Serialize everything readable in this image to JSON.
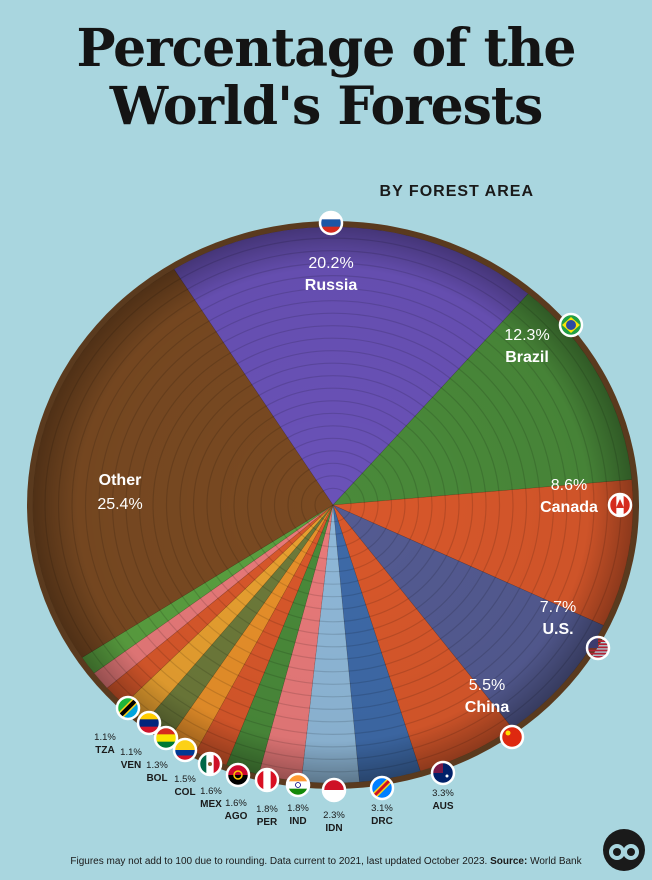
{
  "title_line1": "Percentage of the",
  "title_line2": "World's Forests",
  "subtitle": "BY FOREST AREA",
  "footnote": "Figures may not add to 100 due to rounding. Data current to 2021, last updated October 2023.",
  "source_label": "Source:",
  "source": "World Bank",
  "chart_data": {
    "type": "pie",
    "unit": "%",
    "slices": [
      {
        "label": "Russia",
        "value": 20.2,
        "color": "#6a52b8",
        "flag": "russia-flag"
      },
      {
        "label": "Brazil",
        "value": 12.3,
        "color": "#4a8a3a",
        "flag": "brazil-flag"
      },
      {
        "label": "Canada",
        "value": 8.6,
        "color": "#d9582b",
        "flag": "canada-flag"
      },
      {
        "label": "U.S.",
        "value": 7.7,
        "color": "#545b92",
        "flag": "us-flag"
      },
      {
        "label": "China",
        "value": 5.5,
        "color": "#d9582b",
        "flag": "china-flag"
      },
      {
        "label": "AUS",
        "value": 3.3,
        "color": "#3e6aa8",
        "flag": "australia-flag"
      },
      {
        "label": "DRC",
        "value": 3.1,
        "color": "#8fb8d8",
        "flag": "drc-flag"
      },
      {
        "label": "IDN",
        "value": 2.3,
        "color": "#e87a7a",
        "flag": "indonesia-flag"
      },
      {
        "label": "IND",
        "value": 1.8,
        "color": "#4a8a3a",
        "flag": "india-flag"
      },
      {
        "label": "PER",
        "value": 1.8,
        "color": "#d9582b",
        "flag": "peru-flag"
      },
      {
        "label": "AGO",
        "value": 1.6,
        "color": "#e8902a",
        "flag": "angola-flag"
      },
      {
        "label": "MEX",
        "value": 1.6,
        "color": "#6d7a3a",
        "flag": "mexico-flag"
      },
      {
        "label": "COL",
        "value": 1.5,
        "color": "#e8a030",
        "flag": "colombia-flag"
      },
      {
        "label": "BOL",
        "value": 1.3,
        "color": "#d9582b",
        "flag": "bolivia-flag"
      },
      {
        "label": "VEN",
        "value": 1.1,
        "color": "#e87a7a",
        "flag": "venezuela-flag"
      },
      {
        "label": "TZA",
        "value": 1.1,
        "color": "#5aa040",
        "flag": "tanzania-flag"
      },
      {
        "label": "Other",
        "value": 25.4,
        "color": "#7a4a22",
        "flag": ""
      }
    ]
  }
}
